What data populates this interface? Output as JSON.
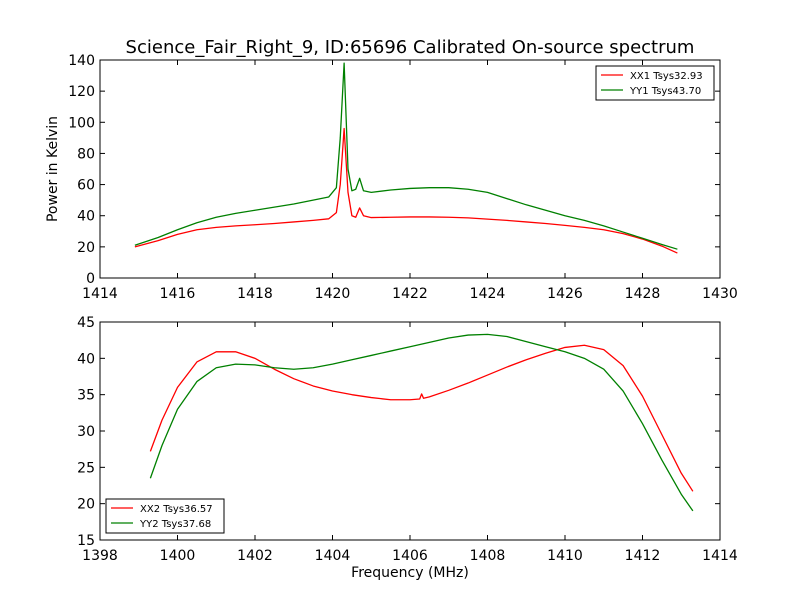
{
  "figure": {
    "title": "Science_Fair_Right_9, ID:65696 Calibrated On-source spectrum"
  },
  "chart_data": [
    {
      "type": "line",
      "xlabel": "",
      "ylabel": "Power in Kelvin",
      "xlim": [
        1414,
        1430
      ],
      "ylim": [
        0,
        140
      ],
      "xticks": [
        1414,
        1416,
        1418,
        1420,
        1422,
        1424,
        1426,
        1428,
        1430
      ],
      "yticks": [
        0,
        20,
        40,
        60,
        80,
        100,
        120,
        140
      ],
      "grid": false,
      "legend_position": "top-right",
      "series": [
        {
          "name": "XX1 Tsys32.93",
          "color": "#ff0000",
          "x": [
            1414.9,
            1415.5,
            1416.0,
            1416.5,
            1417.0,
            1417.5,
            1418.0,
            1418.5,
            1419.0,
            1419.5,
            1419.9,
            1420.1,
            1420.2,
            1420.3,
            1420.4,
            1420.5,
            1420.6,
            1420.7,
            1420.8,
            1421.0,
            1421.5,
            1422.0,
            1422.5,
            1423.0,
            1423.5,
            1424.0,
            1424.5,
            1425.0,
            1425.5,
            1426.0,
            1426.5,
            1427.0,
            1427.5,
            1428.0,
            1428.5,
            1428.9
          ],
          "y": [
            20,
            24,
            28,
            31,
            32.5,
            33.5,
            34.2,
            35,
            36,
            37,
            38,
            42,
            60,
            96,
            55,
            40,
            39,
            45,
            40,
            38.8,
            39,
            39.2,
            39.2,
            39,
            38.6,
            37.8,
            37,
            36,
            35,
            33.8,
            32.5,
            31,
            28.5,
            25,
            20.5,
            16
          ]
        },
        {
          "name": "YY1 Tsys43.70",
          "color": "#008000",
          "x": [
            1414.9,
            1415.5,
            1416.0,
            1416.5,
            1417.0,
            1417.5,
            1418.0,
            1418.5,
            1419.0,
            1419.5,
            1419.9,
            1420.1,
            1420.2,
            1420.3,
            1420.4,
            1420.5,
            1420.6,
            1420.7,
            1420.8,
            1421.0,
            1421.5,
            1422.0,
            1422.5,
            1423.0,
            1423.5,
            1424.0,
            1424.5,
            1425.0,
            1425.5,
            1426.0,
            1426.5,
            1427.0,
            1427.5,
            1428.0,
            1428.5,
            1428.9
          ],
          "y": [
            21,
            26,
            31,
            35.5,
            39,
            41.5,
            43.5,
            45.5,
            47.5,
            50,
            52,
            58,
            90,
            138,
            70,
            56,
            57,
            64,
            56,
            55,
            56.5,
            57.5,
            58,
            58,
            57,
            55,
            51,
            47,
            43.5,
            40,
            37,
            33.5,
            29.5,
            25.5,
            21.5,
            18.5
          ]
        }
      ]
    },
    {
      "type": "line",
      "xlabel": "Frequency (MHz)",
      "ylabel": "",
      "xlim": [
        1398,
        1414
      ],
      "ylim": [
        15,
        45
      ],
      "xticks": [
        1398,
        1400,
        1402,
        1404,
        1406,
        1408,
        1410,
        1412,
        1414
      ],
      "yticks": [
        15,
        20,
        25,
        30,
        35,
        40,
        45
      ],
      "grid": false,
      "legend_position": "bottom-left",
      "series": [
        {
          "name": "XX2 Tsys36.57",
          "color": "#ff0000",
          "x": [
            1399.3,
            1399.6,
            1400.0,
            1400.5,
            1401.0,
            1401.5,
            1402.0,
            1402.5,
            1403.0,
            1403.5,
            1404.0,
            1404.5,
            1405.0,
            1405.5,
            1406.0,
            1406.25,
            1406.3,
            1406.35,
            1406.5,
            1407.0,
            1407.5,
            1408.0,
            1408.5,
            1409.0,
            1409.5,
            1410.0,
            1410.5,
            1411.0,
            1411.5,
            1412.0,
            1412.5,
            1413.0,
            1413.3
          ],
          "y": [
            27.2,
            31.5,
            36,
            39.5,
            40.9,
            40.9,
            40,
            38.5,
            37.2,
            36.2,
            35.5,
            35,
            34.6,
            34.3,
            34.3,
            34.4,
            35.1,
            34.5,
            34.7,
            35.6,
            36.6,
            37.7,
            38.8,
            39.8,
            40.7,
            41.5,
            41.8,
            41.2,
            39,
            34.8,
            29.5,
            24.2,
            21.7
          ]
        },
        {
          "name": "YY2 Tsys37.68",
          "color": "#008000",
          "x": [
            1399.3,
            1399.6,
            1400.0,
            1400.5,
            1401.0,
            1401.5,
            1402.0,
            1402.5,
            1403.0,
            1403.5,
            1404.0,
            1404.5,
            1405.0,
            1405.5,
            1406.0,
            1406.5,
            1407.0,
            1407.5,
            1408.0,
            1408.5,
            1409.0,
            1409.5,
            1410.0,
            1410.5,
            1411.0,
            1411.5,
            1412.0,
            1412.5,
            1413.0,
            1413.3
          ],
          "y": [
            23.5,
            28,
            33,
            36.8,
            38.7,
            39.2,
            39.1,
            38.7,
            38.5,
            38.7,
            39.2,
            39.8,
            40.4,
            41,
            41.6,
            42.2,
            42.8,
            43.2,
            43.3,
            43,
            42.3,
            41.6,
            40.9,
            40,
            38.5,
            35.5,
            31,
            26,
            21.3,
            19
          ]
        }
      ]
    }
  ]
}
